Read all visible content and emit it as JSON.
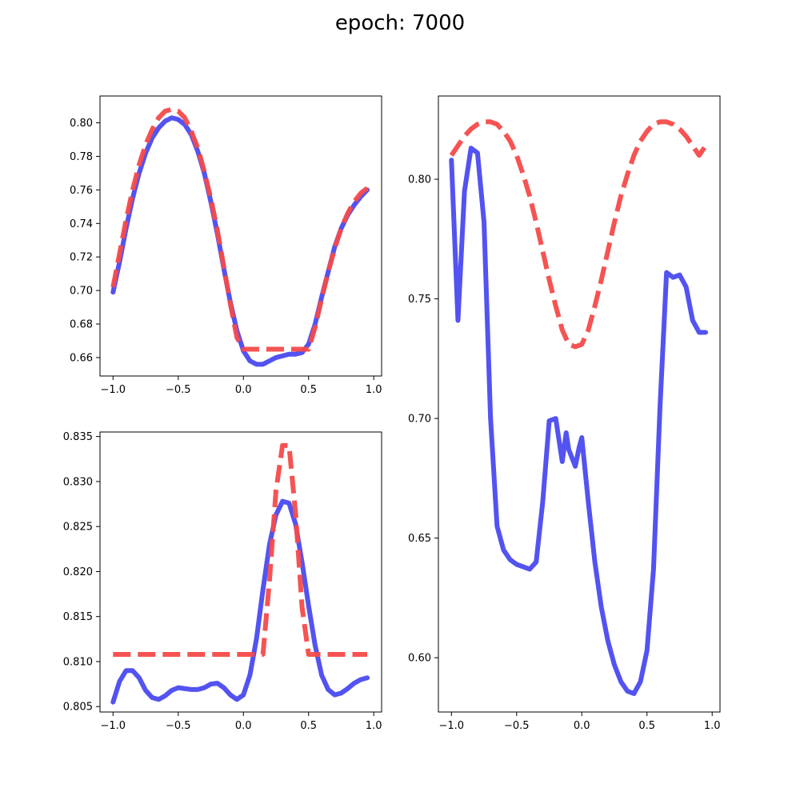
{
  "title": "epoch: 7000",
  "colors": {
    "prediction": "#4a4af0",
    "target": "#f54a4a"
  },
  "chart_data": [
    {
      "type": "line",
      "panel": "top-left",
      "xlim": [
        -1.1,
        1.06
      ],
      "ylim": [
        0.649,
        0.816
      ],
      "xticks": [
        -1.0,
        -0.5,
        0.0,
        0.5,
        1.0
      ],
      "xtick_labels": [
        "−1.0",
        "−0.5",
        "0.0",
        "0.5",
        "1.0"
      ],
      "yticks": [
        0.66,
        0.68,
        0.7,
        0.72,
        0.74,
        0.76,
        0.78,
        0.8
      ],
      "ytick_labels": [
        "0.66",
        "0.68",
        "0.70",
        "0.72",
        "0.74",
        "0.76",
        "0.78",
        "0.80"
      ],
      "series": [
        {
          "style": "solid",
          "color": "#4a4af0",
          "x": [
            -1.0,
            -0.95,
            -0.9,
            -0.85,
            -0.8,
            -0.75,
            -0.7,
            -0.65,
            -0.6,
            -0.55,
            -0.5,
            -0.45,
            -0.4,
            -0.35,
            -0.3,
            -0.25,
            -0.2,
            -0.15,
            -0.1,
            -0.05,
            0.0,
            0.05,
            0.1,
            0.15,
            0.2,
            0.25,
            0.3,
            0.35,
            0.4,
            0.45,
            0.5,
            0.55,
            0.6,
            0.65,
            0.7,
            0.75,
            0.8,
            0.85,
            0.9,
            0.95
          ],
          "y": [
            0.699,
            0.717,
            0.737,
            0.755,
            0.77,
            0.782,
            0.791,
            0.797,
            0.801,
            0.803,
            0.802,
            0.799,
            0.793,
            0.783,
            0.77,
            0.753,
            0.734,
            0.713,
            0.693,
            0.676,
            0.664,
            0.658,
            0.656,
            0.656,
            0.658,
            0.66,
            0.661,
            0.662,
            0.662,
            0.663,
            0.668,
            0.68,
            0.696,
            0.711,
            0.726,
            0.737,
            0.745,
            0.751,
            0.756,
            0.76
          ]
        },
        {
          "style": "dashed",
          "color": "#f54a4a",
          "x": [
            -1.0,
            -0.95,
            -0.9,
            -0.85,
            -0.8,
            -0.75,
            -0.7,
            -0.65,
            -0.6,
            -0.55,
            -0.5,
            -0.45,
            -0.4,
            -0.35,
            -0.3,
            -0.25,
            -0.2,
            -0.15,
            -0.1,
            -0.05,
            0.0,
            0.05,
            0.1,
            0.15,
            0.2,
            0.25,
            0.3,
            0.35,
            0.4,
            0.45,
            0.5,
            0.55,
            0.6,
            0.65,
            0.7,
            0.75,
            0.8,
            0.85,
            0.9,
            0.95
          ],
          "y": [
            0.702,
            0.722,
            0.742,
            0.76,
            0.775,
            0.787,
            0.796,
            0.803,
            0.807,
            0.808,
            0.807,
            0.803,
            0.795,
            0.785,
            0.771,
            0.755,
            0.736,
            0.714,
            0.692,
            0.672,
            0.665,
            0.665,
            0.665,
            0.665,
            0.665,
            0.665,
            0.665,
            0.665,
            0.665,
            0.665,
            0.665,
            0.678,
            0.695,
            0.711,
            0.725,
            0.737,
            0.746,
            0.753,
            0.758,
            0.761
          ]
        }
      ]
    },
    {
      "type": "line",
      "panel": "bottom-left",
      "xlim": [
        -1.1,
        1.06
      ],
      "ylim": [
        0.8044,
        0.8355
      ],
      "xticks": [
        -1.0,
        -0.5,
        0.0,
        0.5,
        1.0
      ],
      "xtick_labels": [
        "−1.0",
        "−0.5",
        "0.0",
        "0.5",
        "1.0"
      ],
      "yticks": [
        0.805,
        0.81,
        0.815,
        0.82,
        0.825,
        0.83,
        0.835
      ],
      "ytick_labels": [
        "0.805",
        "0.810",
        "0.815",
        "0.820",
        "0.825",
        "0.830",
        "0.835"
      ],
      "series": [
        {
          "style": "solid",
          "color": "#4a4af0",
          "x": [
            -1.0,
            -0.95,
            -0.9,
            -0.85,
            -0.8,
            -0.75,
            -0.7,
            -0.65,
            -0.6,
            -0.55,
            -0.5,
            -0.45,
            -0.4,
            -0.35,
            -0.3,
            -0.25,
            -0.2,
            -0.15,
            -0.1,
            -0.05,
            0.0,
            0.05,
            0.1,
            0.15,
            0.2,
            0.25,
            0.3,
            0.35,
            0.4,
            0.45,
            0.5,
            0.55,
            0.6,
            0.65,
            0.7,
            0.75,
            0.8,
            0.85,
            0.9,
            0.95
          ],
          "y": [
            0.8055,
            0.8078,
            0.809,
            0.809,
            0.8082,
            0.8068,
            0.806,
            0.8058,
            0.8062,
            0.8068,
            0.8071,
            0.807,
            0.8069,
            0.8069,
            0.8071,
            0.8075,
            0.8076,
            0.8071,
            0.8063,
            0.8058,
            0.8063,
            0.8085,
            0.8125,
            0.818,
            0.823,
            0.8263,
            0.8278,
            0.8276,
            0.8253,
            0.821,
            0.8162,
            0.8118,
            0.8085,
            0.8069,
            0.8063,
            0.8065,
            0.807,
            0.8076,
            0.808,
            0.8082
          ]
        },
        {
          "style": "dashed",
          "color": "#f54a4a",
          "x": [
            -1.0,
            -0.9,
            -0.8,
            -0.7,
            -0.6,
            -0.5,
            -0.4,
            -0.3,
            -0.2,
            -0.1,
            0.0,
            0.1,
            0.15,
            0.2,
            0.25,
            0.3,
            0.35,
            0.4,
            0.45,
            0.5,
            0.55,
            0.6,
            0.7,
            0.8,
            0.9,
            0.95
          ],
          "y": [
            0.8108,
            0.8108,
            0.8108,
            0.8108,
            0.8108,
            0.8108,
            0.8108,
            0.8108,
            0.8108,
            0.8108,
            0.8108,
            0.8108,
            0.8108,
            0.819,
            0.829,
            0.834,
            0.834,
            0.8265,
            0.816,
            0.8108,
            0.8108,
            0.8108,
            0.8108,
            0.8108,
            0.8108,
            0.8108
          ]
        }
      ]
    },
    {
      "type": "line",
      "panel": "right",
      "xlim": [
        -1.1,
        1.06
      ],
      "ylim": [
        0.5773,
        0.8348
      ],
      "xticks": [
        -1.0,
        -0.5,
        0.0,
        0.5,
        1.0
      ],
      "xtick_labels": [
        "−1.0",
        "−0.5",
        "0.0",
        "0.5",
        "1.0"
      ],
      "yticks": [
        0.6,
        0.65,
        0.7,
        0.75,
        0.8
      ],
      "ytick_labels": [
        "0.60",
        "0.65",
        "0.70",
        "0.75",
        "0.80"
      ],
      "series": [
        {
          "style": "solid",
          "color": "#4a4af0",
          "x": [
            -1.0,
            -0.95,
            -0.9,
            -0.85,
            -0.8,
            -0.75,
            -0.7,
            -0.65,
            -0.6,
            -0.55,
            -0.5,
            -0.45,
            -0.4,
            -0.35,
            -0.3,
            -0.25,
            -0.2,
            -0.15,
            -0.12,
            -0.1,
            -0.05,
            -0.02,
            0.0,
            0.05,
            0.1,
            0.15,
            0.2,
            0.25,
            0.3,
            0.35,
            0.4,
            0.45,
            0.5,
            0.55,
            0.6,
            0.65,
            0.7,
            0.75,
            0.8,
            0.85,
            0.9,
            0.95
          ],
          "y": [
            0.808,
            0.741,
            0.795,
            0.813,
            0.811,
            0.782,
            0.7,
            0.655,
            0.645,
            0.641,
            0.639,
            0.638,
            0.637,
            0.64,
            0.665,
            0.699,
            0.7,
            0.682,
            0.694,
            0.687,
            0.68,
            0.688,
            0.692,
            0.665,
            0.64,
            0.621,
            0.607,
            0.597,
            0.59,
            0.586,
            0.585,
            0.59,
            0.603,
            0.637,
            0.705,
            0.761,
            0.759,
            0.76,
            0.755,
            0.741,
            0.736,
            0.736
          ]
        },
        {
          "style": "dashed",
          "color": "#f54a4a",
          "x": [
            -1.0,
            -0.95,
            -0.9,
            -0.85,
            -0.8,
            -0.75,
            -0.7,
            -0.65,
            -0.6,
            -0.55,
            -0.5,
            -0.45,
            -0.4,
            -0.35,
            -0.3,
            -0.25,
            -0.2,
            -0.15,
            -0.1,
            -0.05,
            0.0,
            0.05,
            0.1,
            0.15,
            0.2,
            0.25,
            0.3,
            0.35,
            0.4,
            0.45,
            0.5,
            0.55,
            0.6,
            0.65,
            0.7,
            0.75,
            0.8,
            0.85,
            0.9,
            0.95
          ],
          "y": [
            0.81,
            0.814,
            0.818,
            0.821,
            0.823,
            0.824,
            0.824,
            0.823,
            0.82,
            0.816,
            0.81,
            0.802,
            0.793,
            0.782,
            0.77,
            0.758,
            0.747,
            0.737,
            0.731,
            0.73,
            0.731,
            0.737,
            0.747,
            0.758,
            0.77,
            0.782,
            0.793,
            0.802,
            0.81,
            0.816,
            0.82,
            0.823,
            0.824,
            0.824,
            0.823,
            0.821,
            0.818,
            0.814,
            0.81,
            0.814
          ]
        }
      ]
    }
  ]
}
